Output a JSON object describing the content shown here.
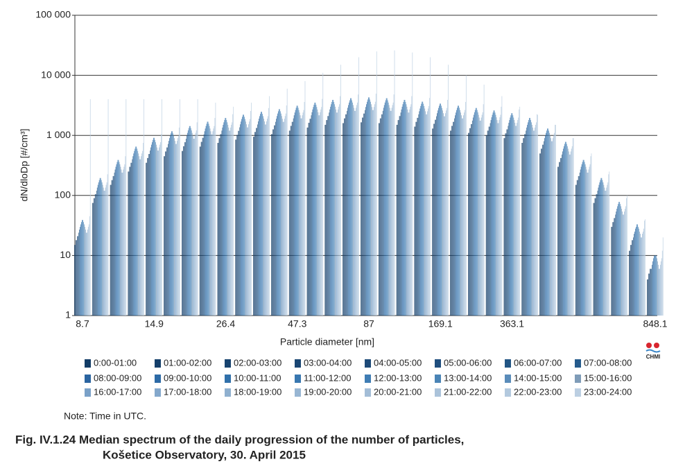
{
  "chart_data": {
    "type": "bar",
    "title": "Fig. IV.1.24  Median spectrum of the daily progression of the number of particles,",
    "subtitle": "Košetice Observatory, 30. April 2015",
    "note": "Note: Time in UTC.",
    "logo": "CHMI",
    "x_label": "Particle diameter [nm]",
    "y_label": "dN/dloDp [#/cm³]",
    "log_y": true,
    "grid": true,
    "ylim": [
      1,
      100000
    ],
    "yticks": [
      1,
      10,
      100,
      {
        "value": 1000,
        "label": "1 000"
      },
      {
        "value": 10000,
        "label": "10 000"
      },
      {
        "value": 100000,
        "label": "100 000"
      }
    ],
    "categories": [
      "8.7",
      null,
      null,
      null,
      "14.9",
      null,
      null,
      null,
      "26.4",
      null,
      null,
      null,
      "47.3",
      null,
      null,
      null,
      "87",
      null,
      null,
      null,
      "169.1",
      null,
      null,
      null,
      "363.1",
      null,
      null,
      null,
      null,
      null,
      null,
      null,
      "848.1"
    ],
    "series": [
      {
        "name": "0:00-01:00",
        "color": "#123c66",
        "values": [
          15,
          75,
          150,
          250,
          350,
          450,
          550,
          650,
          750,
          850,
          950,
          1050,
          1200,
          1350,
          1500,
          1600,
          1650,
          1600,
          1500,
          1400,
          1300,
          1200,
          1100,
          1000,
          900,
          750,
          500,
          300,
          150,
          75,
          30,
          12,
          4
        ]
      },
      {
        "name": "01:00-02:00",
        "color": "#143f6a",
        "values": [
          15,
          75,
          150,
          250,
          350,
          450,
          550,
          650,
          750,
          850,
          950,
          1050,
          1200,
          1350,
          1500,
          1600,
          1650,
          1600,
          1500,
          1400,
          1300,
          1200,
          1100,
          1000,
          900,
          750,
          500,
          300,
          150,
          75,
          30,
          12,
          4
        ]
      },
      {
        "name": "02:00-03:00",
        "color": "#17436f",
        "values": [
          18,
          90,
          180,
          300,
          420,
          540,
          660,
          780,
          900,
          1020,
          1140,
          1260,
          1440,
          1620,
          1800,
          1920,
          1980,
          1920,
          1800,
          1680,
          1560,
          1440,
          1320,
          1200,
          1080,
          900,
          600,
          360,
          180,
          90,
          36,
          15,
          5
        ]
      },
      {
        "name": "03:00-04:00",
        "color": "#1a4673",
        "values": [
          18,
          90,
          180,
          300,
          420,
          540,
          660,
          780,
          900,
          1020,
          1140,
          1260,
          1440,
          1620,
          1800,
          1920,
          1980,
          1920,
          1800,
          1680,
          1560,
          1440,
          1320,
          1200,
          1080,
          900,
          600,
          360,
          180,
          90,
          36,
          15,
          5
        ]
      },
      {
        "name": "04:00-05:00",
        "color": "#1d4a78",
        "values": [
          21,
          105,
          210,
          350,
          490,
          630,
          770,
          910,
          1050,
          1190,
          1330,
          1470,
          1680,
          1890,
          2100,
          2240,
          2310,
          2240,
          2100,
          1960,
          1820,
          1680,
          1540,
          1400,
          1260,
          1050,
          700,
          420,
          210,
          105,
          42,
          18,
          6
        ]
      },
      {
        "name": "05:00-06:00",
        "color": "#1f4e7e",
        "values": [
          21,
          105,
          210,
          350,
          490,
          630,
          770,
          910,
          1050,
          1190,
          1330,
          1470,
          1680,
          1890,
          2100,
          2240,
          2310,
          2240,
          2100,
          1960,
          1820,
          1680,
          1540,
          1400,
          1260,
          1050,
          700,
          420,
          210,
          105,
          42,
          18,
          6
        ]
      },
      {
        "name": "06:00-07:00",
        "color": "#225584",
        "values": [
          24,
          120,
          240,
          400,
          560,
          720,
          880,
          1040,
          1200,
          1360,
          1520,
          1680,
          1920,
          2160,
          2400,
          2560,
          2640,
          2560,
          2400,
          2240,
          2080,
          1920,
          1760,
          1600,
          1440,
          1200,
          800,
          480,
          240,
          120,
          48,
          20,
          6
        ]
      },
      {
        "name": "07:00-08:00",
        "color": "#255b8c",
        "values": [
          27,
          135,
          270,
          450,
          630,
          810,
          990,
          1170,
          1350,
          1530,
          1710,
          1890,
          2160,
          2430,
          2700,
          2880,
          2970,
          2880,
          2700,
          2520,
          2340,
          2160,
          1980,
          1800,
          1620,
          1350,
          900,
          540,
          270,
          135,
          54,
          23,
          7
        ]
      },
      {
        "name": "08:00-09:00",
        "color": "#2a64a0",
        "values": [
          30,
          150,
          300,
          500,
          700,
          900,
          1100,
          1300,
          1500,
          1700,
          1900,
          2100,
          2400,
          2700,
          3000,
          3200,
          3300,
          3200,
          3000,
          2800,
          2600,
          2400,
          2200,
          2000,
          1800,
          1500,
          1000,
          600,
          300,
          150,
          60,
          25,
          8
        ]
      },
      {
        "name": "09:00-10:00",
        "color": "#2d6aa6",
        "values": [
          33,
          165,
          330,
          550,
          770,
          990,
          1210,
          1430,
          1650,
          1870,
          2090,
          2310,
          2640,
          2970,
          3300,
          3520,
          3630,
          3520,
          3300,
          3080,
          2860,
          2640,
          2420,
          2200,
          1980,
          1650,
          1100,
          660,
          330,
          165,
          66,
          28,
          9
        ]
      },
      {
        "name": "10:00-11:00",
        "color": "#3070aa",
        "values": [
          36,
          180,
          360,
          600,
          840,
          1080,
          1320,
          1560,
          1800,
          2040,
          2280,
          2520,
          2880,
          3240,
          3600,
          3840,
          3960,
          3840,
          3600,
          3360,
          3120,
          2880,
          2640,
          2400,
          2160,
          1800,
          1200,
          720,
          360,
          180,
          72,
          30,
          10
        ]
      },
      {
        "name": "11:00-12:00",
        "color": "#3877b0",
        "values": [
          39,
          195,
          390,
          650,
          910,
          1170,
          1430,
          1690,
          1950,
          2210,
          2470,
          2730,
          3120,
          3510,
          3900,
          4160,
          4290,
          4160,
          3900,
          3640,
          3380,
          3120,
          2860,
          2600,
          2340,
          1950,
          1300,
          780,
          390,
          195,
          78,
          33,
          10
        ]
      },
      {
        "name": "12:00-13:00",
        "color": "#3f7db4",
        "values": [
          39,
          195,
          390,
          650,
          910,
          1170,
          1430,
          1690,
          1950,
          2210,
          2470,
          2730,
          3120,
          3510,
          3900,
          4160,
          4290,
          4160,
          3900,
          3640,
          3380,
          3120,
          2860,
          2600,
          2340,
          1950,
          1300,
          780,
          390,
          195,
          78,
          33,
          10
        ]
      },
      {
        "name": "13:00-14:00",
        "color": "#4a84b6",
        "values": [
          36,
          180,
          360,
          600,
          840,
          1080,
          1320,
          1560,
          1800,
          2040,
          2280,
          2520,
          2880,
          3240,
          3600,
          3840,
          3960,
          3840,
          3600,
          3360,
          3120,
          2880,
          2640,
          2400,
          2160,
          1800,
          1200,
          720,
          360,
          180,
          72,
          30,
          10
        ]
      },
      {
        "name": "14:00-15:00",
        "color": "#5a8cba",
        "values": [
          33,
          165,
          330,
          550,
          770,
          990,
          1210,
          1430,
          1650,
          1870,
          2090,
          2310,
          2640,
          2970,
          3300,
          3520,
          3630,
          3520,
          3300,
          3080,
          2860,
          2640,
          2420,
          2200,
          1980,
          1650,
          1100,
          660,
          330,
          165,
          66,
          28,
          9
        ]
      },
      {
        "name": "15:00-16:00",
        "color": "#7f9cb8",
        "values": [
          30,
          150,
          300,
          500,
          700,
          900,
          1100,
          1300,
          1500,
          1700,
          1900,
          2100,
          2400,
          2700,
          3000,
          3200,
          3300,
          3200,
          3000,
          2800,
          2600,
          2400,
          2200,
          2000,
          1800,
          1500,
          1000,
          600,
          300,
          150,
          60,
          25,
          8
        ]
      },
      {
        "name": "16:00-17:00",
        "color": "#7aa1c8",
        "values": [
          27,
          135,
          270,
          450,
          630,
          810,
          990,
          1170,
          1350,
          1530,
          1710,
          1890,
          2160,
          2430,
          2700,
          2880,
          2970,
          2880,
          2700,
          2520,
          2340,
          2160,
          1980,
          1800,
          1620,
          1350,
          900,
          540,
          270,
          135,
          54,
          23,
          7
        ]
      },
      {
        "name": "17:00-18:00",
        "color": "#84a8cc",
        "values": [
          24,
          120,
          240,
          400,
          560,
          720,
          880,
          1040,
          1200,
          1360,
          1520,
          1680,
          1920,
          2160,
          2400,
          2560,
          2640,
          2560,
          2400,
          2240,
          2080,
          1920,
          1760,
          1600,
          1440,
          1200,
          800,
          480,
          240,
          120,
          48,
          20,
          6
        ]
      },
      {
        "name": "18:00-19:00",
        "color": "#8fb0cf",
        "values": [
          24,
          120,
          240,
          400,
          560,
          720,
          880,
          1040,
          1200,
          1360,
          1520,
          1680,
          1920,
          2160,
          2400,
          2560,
          2640,
          2560,
          2400,
          2240,
          2080,
          1920,
          1760,
          1600,
          1440,
          1200,
          800,
          480,
          240,
          120,
          48,
          20,
          6
        ]
      },
      {
        "name": "19:00-20:00",
        "color": "#98b6d3",
        "values": [
          27,
          135,
          270,
          450,
          630,
          810,
          990,
          1170,
          1350,
          1530,
          1710,
          1890,
          2160,
          2430,
          2700,
          2880,
          2970,
          2880,
          2700,
          2520,
          2340,
          2160,
          1980,
          1800,
          1620,
          1350,
          900,
          540,
          270,
          135,
          54,
          23,
          7
        ]
      },
      {
        "name": "20:00-21:00",
        "color": "#a3bdd7",
        "values": [
          30,
          150,
          300,
          500,
          700,
          900,
          1100,
          1300,
          1500,
          1700,
          1900,
          2100,
          2400,
          2700,
          3000,
          3200,
          3300,
          3200,
          3000,
          2800,
          2600,
          2400,
          2200,
          2000,
          1800,
          1500,
          1000,
          600,
          300,
          150,
          60,
          25,
          8
        ]
      },
      {
        "name": "21:00-22:00",
        "color": "#abc3da",
        "values": [
          33,
          165,
          330,
          550,
          770,
          990,
          1210,
          1430,
          1650,
          1870,
          2090,
          2310,
          2640,
          2970,
          3300,
          3520,
          3630,
          3520,
          3300,
          3080,
          2860,
          2640,
          2420,
          2200,
          1980,
          1650,
          1100,
          660,
          330,
          165,
          66,
          28,
          9
        ]
      },
      {
        "name": "22:00-23:00",
        "color": "#b3c9de",
        "values": [
          45,
          225,
          450,
          750,
          1050,
          1350,
          1650,
          1950,
          2250,
          2550,
          2850,
          3150,
          3600,
          4050,
          4500,
          4800,
          4950,
          4800,
          4500,
          4200,
          3900,
          3600,
          3300,
          3000,
          2700,
          2250,
          1500,
          900,
          450,
          225,
          90,
          38,
          12
        ]
      },
      {
        "name": "23:00-24:00",
        "color": "#bccfe2",
        "values": [
          4000,
          4000,
          4000,
          4000,
          4000,
          4000,
          4000,
          3500,
          3000,
          3500,
          4500,
          6000,
          8000,
          11000,
          15000,
          20000,
          25000,
          26000,
          24000,
          20000,
          15000,
          10000,
          7000,
          4500,
          3000,
          2200,
          1500,
          900,
          500,
          250,
          100,
          40,
          20
        ]
      }
    ]
  }
}
